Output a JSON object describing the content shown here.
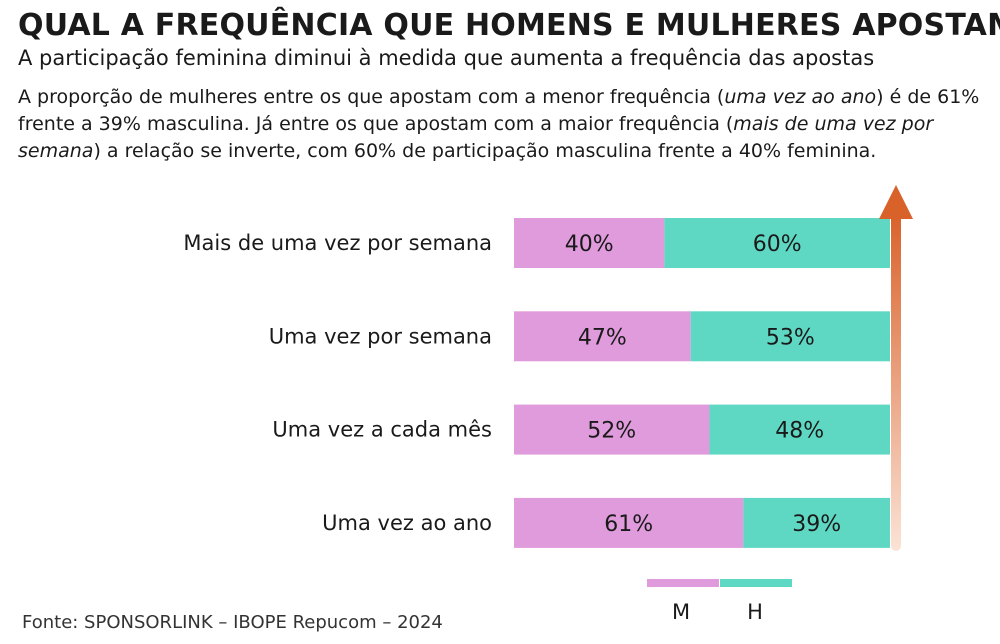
{
  "title": "QUAL A FREQUÊNCIA QUE HOMENS E MULHERES APOSTAM?",
  "subtitle": "A participação feminina diminui à medida que aumenta a frequência das apostas",
  "description": {
    "part1": "A proporção de mulheres entre os que apostam com a menor frequência (",
    "em1": "uma vez ao ano",
    "part2": ") é de 61% frente a 39% masculina. Já entre os que apostam com a maior frequência (",
    "em2": "mais de uma vez por semana",
    "part3": ") a relação se inverte, com 60% de participação masculina frente a 40% feminina."
  },
  "source": "Fonte: SPONSORLINK – IBOPE Repucom – 2024",
  "colors": {
    "women": "#e09bdc",
    "men": "#5fd8c3",
    "arrow_top": "#d9622b",
    "arrow_bottom": "#fbe3d6"
  },
  "chart_data": {
    "type": "bar",
    "orientation": "horizontal",
    "stacked": true,
    "percent": true,
    "categories": [
      "Mais de uma vez por semana",
      "Uma vez por semana",
      "Uma vez a cada mês",
      "Uma vez ao ano"
    ],
    "series": [
      {
        "name": "M",
        "values": [
          40,
          47,
          52,
          61
        ],
        "labels": [
          "40%",
          "47%",
          "52%",
          "61%"
        ]
      },
      {
        "name": "H",
        "values": [
          60,
          53,
          48,
          39
        ],
        "labels": [
          "60%",
          "53%",
          "48%",
          "39%"
        ]
      }
    ],
    "xlim": [
      0,
      100
    ],
    "grid": false,
    "legend": "bottom-right",
    "annotation": "upward arrow indicating increasing frequency"
  }
}
